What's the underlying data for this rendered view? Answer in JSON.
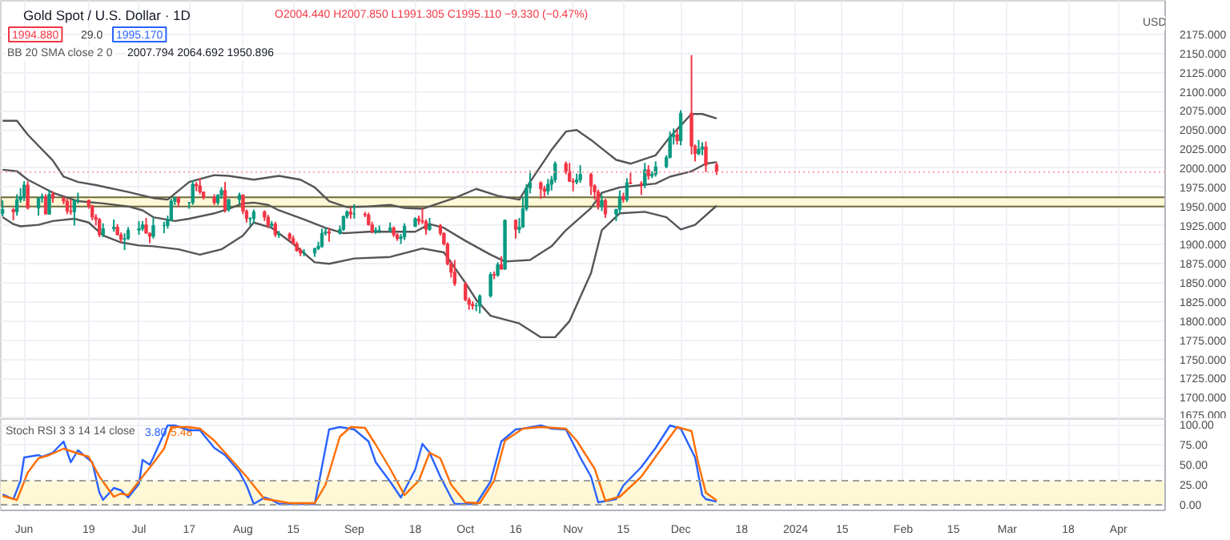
{
  "chart_data": [
    {
      "type": "candlestick",
      "title": "Gold Spot / U.S. Dollar · 1D",
      "annotations": [
        "O2004.440 H2007.850 L1991.305 C1995.110 −9.330 (−0.47%)",
        "1994.880",
        "29.0",
        "1995.170",
        "BB 20 SMA close 2 0",
        "2007.794 2064.692 1950.896",
        "USD"
      ],
      "x": [
        "2023-05-26",
        "2023-05-29",
        "2023-05-30",
        "2023-05-31",
        "2023-06-01",
        "2023-06-02",
        "2023-06-05",
        "2023-06-06",
        "2023-06-07",
        "2023-06-08",
        "2023-06-09",
        "2023-06-12",
        "2023-06-13",
        "2023-06-14",
        "2023-06-15",
        "2023-06-16",
        "2023-06-19",
        "2023-06-20",
        "2023-06-21",
        "2023-06-22",
        "2023-06-23",
        "2023-06-26",
        "2023-06-27",
        "2023-06-28",
        "2023-06-29",
        "2023-06-30",
        "2023-07-03",
        "2023-07-04",
        "2023-07-05",
        "2023-07-06",
        "2023-07-07",
        "2023-07-10",
        "2023-07-11",
        "2023-07-12",
        "2023-07-13",
        "2023-07-14",
        "2023-07-17",
        "2023-07-18",
        "2023-07-19",
        "2023-07-20",
        "2023-07-21",
        "2023-07-24",
        "2023-07-25",
        "2023-07-26",
        "2023-07-27",
        "2023-07-28",
        "2023-07-31",
        "2023-08-01",
        "2023-08-02",
        "2023-08-03",
        "2023-08-04",
        "2023-08-07",
        "2023-08-08",
        "2023-08-09",
        "2023-08-10",
        "2023-08-11",
        "2023-08-14",
        "2023-08-15",
        "2023-08-16",
        "2023-08-17",
        "2023-08-18",
        "2023-08-21",
        "2023-08-22",
        "2023-08-23",
        "2023-08-24",
        "2023-08-25",
        "2023-08-28",
        "2023-08-29",
        "2023-08-30",
        "2023-08-31",
        "2023-09-01",
        "2023-09-04",
        "2023-09-05",
        "2023-09-06",
        "2023-09-07",
        "2023-09-08",
        "2023-09-11",
        "2023-09-12",
        "2023-09-13",
        "2023-09-14",
        "2023-09-15",
        "2023-09-18",
        "2023-09-19",
        "2023-09-20",
        "2023-09-21",
        "2023-09-22",
        "2023-09-25",
        "2023-09-26",
        "2023-09-27",
        "2023-09-28",
        "2023-09-29",
        "2023-10-02",
        "2023-10-03",
        "2023-10-04",
        "2023-10-05",
        "2023-10-06",
        "2023-10-09",
        "2023-10-10",
        "2023-10-11",
        "2023-10-12",
        "2023-10-13",
        "2023-10-16",
        "2023-10-17",
        "2023-10-18",
        "2023-10-19",
        "2023-10-20",
        "2023-10-23",
        "2023-10-24",
        "2023-10-25",
        "2023-10-26",
        "2023-10-27",
        "2023-10-30",
        "2023-10-31",
        "2023-11-01",
        "2023-11-02",
        "2023-11-03",
        "2023-11-06",
        "2023-11-07",
        "2023-11-08",
        "2023-11-09",
        "2023-11-10",
        "2023-11-13",
        "2023-11-14",
        "2023-11-15",
        "2023-11-16",
        "2023-11-17",
        "2023-11-20",
        "2023-11-21",
        "2023-11-22",
        "2023-11-23",
        "2023-11-24",
        "2023-11-27",
        "2023-11-28",
        "2023-11-29",
        "2023-11-30",
        "2023-12-01",
        "2023-12-04",
        "2023-12-05",
        "2023-12-06",
        "2023-12-07",
        "2023-12-08",
        "2023-12-11"
      ],
      "ohlc": [
        [
          1941,
          1958,
          1937,
          1946
        ],
        [
          1946,
          1948,
          1932,
          1943
        ],
        [
          1943,
          1966,
          1938,
          1959
        ],
        [
          1959,
          1974,
          1955,
          1963
        ],
        [
          1963,
          1983,
          1957,
          1978
        ],
        [
          1978,
          1983,
          1946,
          1948
        ],
        [
          1948,
          1962,
          1938,
          1961
        ],
        [
          1961,
          1967,
          1955,
          1963
        ],
        [
          1963,
          1966,
          1940,
          1940
        ],
        [
          1940,
          1972,
          1939,
          1966
        ],
        [
          1966,
          1970,
          1955,
          1961
        ],
        [
          1961,
          1963,
          1953,
          1957
        ],
        [
          1957,
          1960,
          1940,
          1944
        ],
        [
          1944,
          1959,
          1939,
          1943
        ],
        [
          1943,
          1959,
          1925,
          1958
        ],
        [
          1958,
          1968,
          1954,
          1958
        ],
        [
          1958,
          1959,
          1947,
          1951
        ],
        [
          1951,
          1952,
          1932,
          1936
        ],
        [
          1936,
          1940,
          1925,
          1933
        ],
        [
          1933,
          1935,
          1910,
          1913
        ],
        [
          1913,
          1928,
          1910,
          1921
        ],
        [
          1921,
          1933,
          1917,
          1923
        ],
        [
          1923,
          1927,
          1912,
          1913
        ],
        [
          1913,
          1916,
          1903,
          1907
        ],
        [
          1907,
          1915,
          1893,
          1908
        ],
        [
          1908,
          1923,
          1906,
          1919
        ],
        [
          1919,
          1931,
          1913,
          1921
        ],
        [
          1921,
          1931,
          1918,
          1926
        ],
        [
          1926,
          1935,
          1915,
          1915
        ],
        [
          1915,
          1916,
          1902,
          1911
        ],
        [
          1911,
          1935,
          1908,
          1925
        ],
        [
          1925,
          1930,
          1915,
          1925
        ],
        [
          1925,
          1938,
          1921,
          1932
        ],
        [
          1932,
          1960,
          1931,
          1957
        ],
        [
          1957,
          1963,
          1952,
          1961
        ],
        [
          1961,
          1963,
          1949,
          1955
        ],
        [
          1955,
          1956,
          1947,
          1955
        ],
        [
          1955,
          1984,
          1952,
          1979
        ],
        [
          1979,
          1982,
          1970,
          1977
        ],
        [
          1977,
          1987,
          1966,
          1969
        ],
        [
          1969,
          1969,
          1959,
          1962
        ],
        [
          1962,
          1966,
          1952,
          1955
        ],
        [
          1955,
          1966,
          1952,
          1965
        ],
        [
          1965,
          1975,
          1960,
          1971
        ],
        [
          1971,
          1982,
          1942,
          1946
        ],
        [
          1946,
          1960,
          1943,
          1959
        ],
        [
          1959,
          1968,
          1953,
          1965
        ],
        [
          1965,
          1966,
          1940,
          1944
        ],
        [
          1944,
          1946,
          1929,
          1934
        ],
        [
          1934,
          1936,
          1925,
          1934
        ],
        [
          1934,
          1946,
          1928,
          1943
        ],
        [
          1943,
          1945,
          1931,
          1936
        ],
        [
          1936,
          1939,
          1922,
          1925
        ],
        [
          1925,
          1931,
          1922,
          1927
        ],
        [
          1927,
          1930,
          1910,
          1913
        ],
        [
          1913,
          1918,
          1909,
          1914
        ],
        [
          1914,
          1916,
          1905,
          1908
        ],
        [
          1908,
          1912,
          1900,
          1901
        ],
        [
          1901,
          1904,
          1891,
          1892
        ],
        [
          1892,
          1896,
          1885,
          1889
        ],
        [
          1889,
          1894,
          1885,
          1889
        ],
        [
          1889,
          1896,
          1884,
          1895
        ],
        [
          1895,
          1904,
          1893,
          1898
        ],
        [
          1898,
          1921,
          1896,
          1915
        ],
        [
          1915,
          1922,
          1912,
          1917
        ],
        [
          1917,
          1922,
          1904,
          1915
        ],
        [
          1915,
          1925,
          1913,
          1920
        ],
        [
          1920,
          1938,
          1918,
          1937
        ],
        [
          1937,
          1945,
          1934,
          1943
        ],
        [
          1943,
          1949,
          1934,
          1940
        ],
        [
          1940,
          1953,
          1934,
          1940
        ],
        [
          1940,
          1943,
          1936,
          1939
        ],
        [
          1939,
          1942,
          1925,
          1926
        ],
        [
          1926,
          1930,
          1915,
          1917
        ],
        [
          1917,
          1923,
          1914,
          1919
        ],
        [
          1919,
          1925,
          1915,
          1919
        ],
        [
          1919,
          1929,
          1916,
          1922
        ],
        [
          1922,
          1924,
          1910,
          1913
        ],
        [
          1913,
          1915,
          1905,
          1908
        ],
        [
          1908,
          1914,
          1901,
          1910
        ],
        [
          1910,
          1928,
          1906,
          1924
        ],
        [
          1924,
          1936,
          1923,
          1934
        ],
        [
          1934,
          1938,
          1926,
          1931
        ],
        [
          1931,
          1947,
          1927,
          1930
        ],
        [
          1930,
          1933,
          1913,
          1920
        ],
        [
          1920,
          1935,
          1918,
          1925
        ],
        [
          1925,
          1927,
          1912,
          1915
        ],
        [
          1915,
          1916,
          1899,
          1901
        ],
        [
          1901,
          1903,
          1873,
          1875
        ],
        [
          1875,
          1879,
          1857,
          1864
        ],
        [
          1864,
          1880,
          1846,
          1849
        ],
        [
          1849,
          1851,
          1826,
          1828
        ],
        [
          1828,
          1831,
          1815,
          1822
        ],
        [
          1822,
          1826,
          1815,
          1820
        ],
        [
          1820,
          1824,
          1813,
          1820
        ],
        [
          1820,
          1835,
          1810,
          1833
        ],
        [
          1833,
          1864,
          1831,
          1861
        ],
        [
          1861,
          1865,
          1855,
          1860
        ],
        [
          1860,
          1877,
          1858,
          1874
        ],
        [
          1874,
          1885,
          1867,
          1868
        ],
        [
          1868,
          1933,
          1867,
          1932
        ],
        [
          1932,
          1933,
          1908,
          1920
        ],
        [
          1920,
          1935,
          1915,
          1923
        ],
        [
          1923,
          1962,
          1922,
          1947
        ],
        [
          1947,
          1979,
          1944,
          1974
        ],
        [
          1974,
          1997,
          1967,
          1981
        ],
        [
          1981,
          1983,
          1960,
          1973
        ],
        [
          1973,
          1977,
          1962,
          1970
        ],
        [
          1970,
          1986,
          1965,
          1979
        ],
        [
          1979,
          1990,
          1971,
          1985
        ],
        [
          1985,
          2009,
          1981,
          2006
        ],
        [
          2006,
          2009,
          1992,
          1996
        ],
        [
          1996,
          2007,
          1982,
          1983
        ],
        [
          1983,
          1987,
          1970,
          1982
        ],
        [
          1982,
          1993,
          1979,
          1985
        ],
        [
          1985,
          2004,
          1981,
          1992
        ],
        [
          1992,
          1994,
          1965,
          1977
        ],
        [
          1977,
          1979,
          1959,
          1969
        ],
        [
          1969,
          1972,
          1946,
          1950
        ],
        [
          1950,
          1965,
          1944,
          1958
        ],
        [
          1958,
          1960,
          1935,
          1940
        ],
        [
          1940,
          1947,
          1931,
          1946
        ],
        [
          1946,
          1971,
          1940,
          1963
        ],
        [
          1963,
          1968,
          1955,
          1959
        ],
        [
          1959,
          1987,
          1956,
          1981
        ],
        [
          1981,
          1994,
          1979,
          1980
        ],
        [
          1980,
          1983,
          1965,
          1978
        ],
        [
          1978,
          2007,
          1974,
          1998
        ],
        [
          1998,
          2004,
          1985,
          1990
        ],
        [
          1990,
          1996,
          1987,
          1992
        ],
        [
          1992,
          2009,
          1989,
          2002
        ],
        [
          2002,
          2017,
          2000,
          2014
        ],
        [
          2014,
          2048,
          2013,
          2041
        ],
        [
          2041,
          2052,
          2031,
          2044
        ],
        [
          2044,
          2051,
          2031,
          2036
        ],
        [
          2036,
          2076,
          2030,
          2072
        ],
        [
          2072,
          2148,
          2018,
          2029
        ],
        [
          2029,
          2031,
          2009,
          2019
        ],
        [
          2019,
          2037,
          2017,
          2025
        ],
        [
          2025,
          2034,
          2017,
          2028
        ],
        [
          2028,
          2035,
          1995,
          2004
        ],
        [
          2004.44,
          2007.85,
          1991.305,
          1995.11
        ]
      ],
      "series": [
        {
          "type": "line",
          "color": "#555555",
          "x": [
            "2023-05-26",
            "2023-05-30",
            "2023-06-02",
            "2023-06-09",
            "2023-06-12",
            "2023-06-16",
            "2023-06-21",
            "2023-06-30",
            "2023-07-07",
            "2023-07-11",
            "2023-07-17",
            "2023-07-24",
            "2023-07-28",
            "2023-08-04",
            "2023-08-11",
            "2023-08-17",
            "2023-08-21",
            "2023-08-25",
            "2023-08-30",
            "2023-09-05",
            "2023-09-11",
            "2023-09-15",
            "2023-09-20",
            "2023-09-29",
            "2023-10-05",
            "2023-10-11",
            "2023-10-17",
            "2023-10-20",
            "2023-10-26",
            "2023-10-30",
            "2023-11-02",
            "2023-11-06",
            "2023-11-13",
            "2023-11-17",
            "2023-11-24",
            "2023-11-28",
            "2023-12-04",
            "2023-12-07",
            "2023-12-11"
          ],
          "values": [
            2062,
            2062,
            2044,
            2010,
            1989,
            1982,
            1978,
            1969,
            1961,
            1959,
            1982,
            1991,
            1990,
            1985,
            1990,
            1985,
            1975,
            1957,
            1949,
            1950,
            1952,
            1948,
            1947,
            1961,
            1973,
            1964,
            1959,
            1982,
            2024,
            2048,
            2050,
            2037,
            2011,
            2006,
            2017,
            2041,
            2071,
            2071,
            2065
          ]
        },
        {
          "type": "line",
          "color": "#555555",
          "x": [
            "2023-05-26",
            "2023-05-30",
            "2023-06-02",
            "2023-06-09",
            "2023-06-16",
            "2023-06-23",
            "2023-06-30",
            "2023-07-04",
            "2023-07-07",
            "2023-07-13",
            "2023-07-17",
            "2023-07-24",
            "2023-07-28",
            "2023-08-01",
            "2023-08-04",
            "2023-08-08",
            "2023-08-11",
            "2023-08-18",
            "2023-08-24",
            "2023-08-29",
            "2023-09-05",
            "2023-09-12",
            "2023-09-18",
            "2023-09-22",
            "2023-09-26",
            "2023-10-02",
            "2023-10-09",
            "2023-10-13",
            "2023-10-20",
            "2023-10-26",
            "2023-10-30",
            "2023-11-06",
            "2023-11-09",
            "2023-11-14",
            "2023-11-20",
            "2023-11-24",
            "2023-11-28",
            "2023-12-04",
            "2023-12-08",
            "2023-12-11"
          ],
          "values": [
            1998,
            1996,
            1985,
            1968,
            1957,
            1954,
            1950,
            1945,
            1936,
            1931,
            1934,
            1941,
            1947,
            1954,
            1955,
            1952,
            1945,
            1933,
            1922,
            1915,
            1917,
            1917,
            1917,
            1927,
            1922,
            1905,
            1887,
            1878,
            1880,
            1898,
            1919,
            1948,
            1968,
            1975,
            1978,
            1980,
            1989,
            1996,
            2006,
            2008
          ]
        },
        {
          "type": "line",
          "color": "#555555",
          "x": [
            "2023-05-26",
            "2023-05-29",
            "2023-05-31",
            "2023-06-05",
            "2023-06-09",
            "2023-06-15",
            "2023-06-19",
            "2023-06-23",
            "2023-06-28",
            "2023-07-03",
            "2023-07-07",
            "2023-07-14",
            "2023-07-20",
            "2023-07-26",
            "2023-08-01",
            "2023-08-04",
            "2023-08-09",
            "2023-08-15",
            "2023-08-21",
            "2023-08-25",
            "2023-09-01",
            "2023-09-11",
            "2023-09-20",
            "2023-09-26",
            "2023-10-02",
            "2023-10-05",
            "2023-10-09",
            "2023-10-17",
            "2023-10-23",
            "2023-10-27",
            "2023-10-31",
            "2023-11-06",
            "2023-11-09",
            "2023-11-14",
            "2023-11-21",
            "2023-11-27",
            "2023-12-01",
            "2023-12-05",
            "2023-12-11"
          ],
          "values": [
            1936,
            1927,
            1924,
            1926,
            1931,
            1934,
            1929,
            1912,
            1903,
            1899,
            1898,
            1894,
            1887,
            1894,
            1912,
            1929,
            1922,
            1901,
            1877,
            1875,
            1882,
            1884,
            1895,
            1890,
            1850,
            1828,
            1807,
            1797,
            1779,
            1779,
            1800,
            1863,
            1919,
            1941,
            1943,
            1936,
            1920,
            1926,
            1951
          ]
        }
      ],
      "bands": [
        {
          "axis": "y",
          "from": 1950,
          "to": 1962,
          "color": "#fff8d6"
        }
      ],
      "ref_lines": [
        {
          "axis": "y",
          "value": 1995.11,
          "color": "#f7a5ab",
          "line_style": "dotted"
        }
      ],
      "xlim": [
        "2023-05-25T12:00",
        "2024-04-14"
      ],
      "xticks": [
        {
          "value": "2023-06-01",
          "label": null
        },
        {
          "value": "2023-06-19",
          "label": null
        },
        {
          "value": "2023-07-03",
          "label": null
        },
        {
          "value": "2023-07-17",
          "label": null
        },
        {
          "value": "2023-08-01",
          "label": null
        },
        {
          "value": "2023-08-15",
          "label": null
        },
        {
          "value": "2023-09-01",
          "label": null
        },
        {
          "value": "2023-09-18",
          "label": null
        },
        {
          "value": "2023-10-02",
          "label": null
        },
        {
          "value": "2023-10-16",
          "label": null
        },
        {
          "value": "2023-11-01",
          "label": null
        },
        {
          "value": "2023-11-15",
          "label": null
        },
        {
          "value": "2023-12-01",
          "label": null
        },
        {
          "value": "2023-12-18",
          "label": null
        },
        {
          "value": "2024-01-02",
          "label": null
        },
        {
          "value": "2024-01-15",
          "label": null
        },
        {
          "value": "2024-02-01",
          "label": null
        },
        {
          "value": "2024-02-15",
          "label": null
        },
        {
          "value": "2024-03-01",
          "label": null
        },
        {
          "value": "2024-03-18",
          "label": null
        },
        {
          "value": "2024-04-01",
          "label": null
        }
      ],
      "ylim": [
        1672,
        2219
      ],
      "yticks": [
        {
          "value": 1675,
          "label": "1675.000"
        },
        {
          "value": 1700,
          "label": "1700.000"
        },
        {
          "value": 1725,
          "label": "1725.000"
        },
        {
          "value": 1750,
          "label": "1750.000"
        },
        {
          "value": 1775,
          "label": "1775.000"
        },
        {
          "value": 1800,
          "label": "1800.000"
        },
        {
          "value": 1825,
          "label": "1825.000"
        },
        {
          "value": 1850,
          "label": "1850.000"
        },
        {
          "value": 1875,
          "label": "1875.000"
        },
        {
          "value": 1900,
          "label": "1900.000"
        },
        {
          "value": 1925,
          "label": "1925.000"
        },
        {
          "value": 1950,
          "label": "1950.000"
        },
        {
          "value": 1975,
          "label": "1975.000"
        },
        {
          "value": 2000,
          "label": "2000.000"
        },
        {
          "value": 2025,
          "label": "2025.000"
        },
        {
          "value": 2050,
          "label": "2050.000"
        },
        {
          "value": 2075,
          "label": "2075.000"
        },
        {
          "value": 2100,
          "label": "2100.000"
        },
        {
          "value": 2125,
          "label": "2125.000"
        },
        {
          "value": 2150,
          "label": "2150.000"
        },
        {
          "value": 2175,
          "label": "2175.000"
        }
      ],
      "tick_labels": "y",
      "grid": true
    },
    {
      "type": "line",
      "annotations": [
        "Stoch RSI 3 3 14 14 close",
        "3.80",
        "5.48"
      ],
      "series": [
        {
          "color": "#2962ff",
          "x": [
            "2023-05-26",
            "2023-05-29",
            "2023-05-31",
            "2023-06-01",
            "2023-06-05",
            "2023-06-06",
            "2023-06-09",
            "2023-06-12",
            "2023-06-14",
            "2023-06-16",
            "2023-06-20",
            "2023-06-22",
            "2023-06-23",
            "2023-06-26",
            "2023-06-28",
            "2023-06-30",
            "2023-07-03",
            "2023-07-04",
            "2023-07-06",
            "2023-07-07",
            "2023-07-11",
            "2023-07-13",
            "2023-07-17",
            "2023-07-20",
            "2023-07-24",
            "2023-07-27",
            "2023-07-31",
            "2023-08-02",
            "2023-08-04",
            "2023-08-07",
            "2023-08-09",
            "2023-08-11",
            "2023-08-21",
            "2023-08-22",
            "2023-08-25",
            "2023-08-28",
            "2023-09-01",
            "2023-09-05",
            "2023-09-07",
            "2023-09-11",
            "2023-09-14",
            "2023-09-18",
            "2023-09-20",
            "2023-09-22",
            "2023-09-25",
            "2023-09-28",
            "2023-09-29",
            "2023-10-05",
            "2023-10-09",
            "2023-10-12",
            "2023-10-16",
            "2023-10-18",
            "2023-10-23",
            "2023-10-26",
            "2023-10-30",
            "2023-11-03",
            "2023-11-06",
            "2023-11-08",
            "2023-11-13",
            "2023-11-15",
            "2023-11-20",
            "2023-11-24",
            "2023-11-28",
            "2023-12-01",
            "2023-12-05",
            "2023-12-07",
            "2023-12-08",
            "2023-12-11"
          ],
          "values": [
            13,
            7,
            30,
            59,
            62,
            60,
            65,
            79,
            53,
            68,
            53,
            15,
            6,
            21,
            18,
            9,
            26,
            56,
            50,
            59,
            99,
            99,
            93,
            93,
            71,
            62,
            41,
            24,
            1,
            9,
            6,
            1,
            1,
            24,
            94,
            97,
            94,
            79,
            53,
            29,
            9,
            44,
            76,
            65,
            35,
            9,
            1,
            1,
            29,
            79,
            94,
            95,
            99,
            95,
            94,
            59,
            35,
            3,
            7,
            24,
            47,
            71,
            99,
            95,
            59,
            12,
            7,
            3.8
          ]
        },
        {
          "color": "#ff6d00",
          "x": [
            "2023-05-26",
            "2023-05-30",
            "2023-06-02",
            "2023-06-05",
            "2023-06-08",
            "2023-06-12",
            "2023-06-16",
            "2023-06-19",
            "2023-06-22",
            "2023-06-26",
            "2023-06-28",
            "2023-06-30",
            "2023-07-04",
            "2023-07-07",
            "2023-07-10",
            "2023-07-12",
            "2023-07-17",
            "2023-07-20",
            "2023-07-24",
            "2023-07-28",
            "2023-08-02",
            "2023-08-07",
            "2023-08-09",
            "2023-08-14",
            "2023-08-21",
            "2023-08-24",
            "2023-08-28",
            "2023-08-31",
            "2023-09-04",
            "2023-09-07",
            "2023-09-11",
            "2023-09-15",
            "2023-09-19",
            "2023-09-22",
            "2023-09-25",
            "2023-09-28",
            "2023-10-02",
            "2023-10-06",
            "2023-10-10",
            "2023-10-13",
            "2023-10-18",
            "2023-10-23",
            "2023-10-30",
            "2023-11-02",
            "2023-11-07",
            "2023-11-10",
            "2023-11-14",
            "2023-11-20",
            "2023-11-24",
            "2023-11-30",
            "2023-12-04",
            "2023-12-06",
            "2023-12-08",
            "2023-12-11"
          ],
          "values": [
            11,
            6,
            40,
            58,
            62,
            70,
            64,
            60,
            35,
            10,
            14,
            12,
            35,
            52,
            70,
            97,
            97,
            95,
            80,
            60,
            35,
            7,
            6,
            2,
            2,
            25,
            85,
            97,
            96,
            75,
            45,
            12,
            30,
            65,
            58,
            25,
            3,
            2,
            30,
            80,
            95,
            97,
            95,
            80,
            45,
            5,
            10,
            35,
            60,
            97,
            92,
            50,
            15,
            5.48
          ]
        }
      ],
      "bands": [
        {
          "axis": "y",
          "from": 0,
          "to": 30,
          "color": "#fff8d6"
        }
      ],
      "ref_lines": [
        {
          "axis": "y",
          "value": 0,
          "color": "#9e9e9e",
          "line_style": "dashed"
        },
        {
          "axis": "y",
          "value": 30,
          "color": "#9e9e9e",
          "line_style": "dashed"
        }
      ],
      "xlim": [
        "2023-05-25T12:00",
        "2024-04-14"
      ],
      "xticks": [
        {
          "value": "2023-06-01",
          "label": "Jun"
        },
        {
          "value": "2023-06-19",
          "label": "19"
        },
        {
          "value": "2023-07-03",
          "label": "Jul"
        },
        {
          "value": "2023-07-17",
          "label": "17"
        },
        {
          "value": "2023-08-01",
          "label": "Aug"
        },
        {
          "value": "2023-08-15",
          "label": "15"
        },
        {
          "value": "2023-09-01",
          "label": "Sep"
        },
        {
          "value": "2023-09-18",
          "label": "18"
        },
        {
          "value": "2023-10-02",
          "label": "Oct"
        },
        {
          "value": "2023-10-16",
          "label": "16"
        },
        {
          "value": "2023-11-01",
          "label": "Nov"
        },
        {
          "value": "2023-11-15",
          "label": "15"
        },
        {
          "value": "2023-12-01",
          "label": "Dec"
        },
        {
          "value": "2023-12-18",
          "label": "18"
        },
        {
          "value": "2024-01-02",
          "label": "2024"
        },
        {
          "value": "2024-01-15",
          "label": "15"
        },
        {
          "value": "2024-02-01",
          "label": "Feb"
        },
        {
          "value": "2024-02-15",
          "label": "15"
        },
        {
          "value": "2024-03-01",
          "label": "Mar"
        },
        {
          "value": "2024-03-18",
          "label": "18"
        },
        {
          "value": "2024-04-01",
          "label": "Apr"
        }
      ],
      "ylim": [
        -7,
        107
      ],
      "yticks": [
        {
          "value": 0,
          "label": "0.00"
        },
        {
          "value": 25,
          "label": "25.00"
        },
        {
          "value": 50,
          "label": "50.00"
        },
        {
          "value": 75,
          "label": "75.00"
        },
        {
          "value": 100,
          "label": "100.00"
        }
      ],
      "grid": true
    }
  ]
}
